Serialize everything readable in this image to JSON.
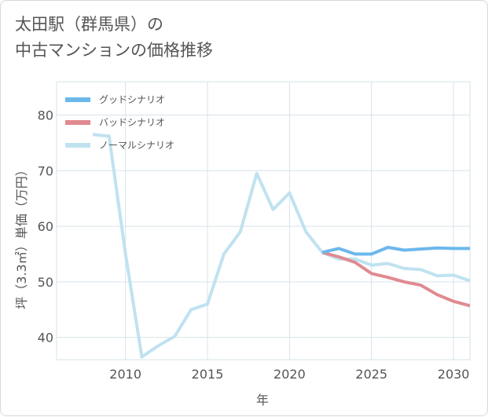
{
  "title_lines": [
    "太田駅（群馬県）の",
    "中古マンションの価格推移"
  ],
  "chart_data": {
    "type": "line",
    "title": "太田駅（群馬県）の中古マンションの価格推移",
    "xlabel": "年",
    "ylabel": "坪（3.3㎡）単価（万円）",
    "xlim": [
      2005.8,
      2031
    ],
    "ylim": [
      36,
      86
    ],
    "xticks": [
      2010,
      2015,
      2020,
      2025,
      2030
    ],
    "yticks": [
      40,
      50,
      60,
      70,
      80
    ],
    "grid": true,
    "legend_position": "top-left",
    "series": [
      {
        "name": "グッドシナリオ",
        "color": "#6cb8ec",
        "x": [
          2022,
          2023,
          2024,
          2025,
          2026,
          2027,
          2028,
          2029,
          2030,
          2031
        ],
        "values": [
          55.3,
          56.0,
          55.0,
          55.0,
          56.2,
          55.7,
          55.9,
          56.1,
          56.0,
          56.0
        ]
      },
      {
        "name": "バッドシナリオ",
        "color": "#e08a90",
        "x": [
          2022,
          2023,
          2024,
          2025,
          2026,
          2027,
          2028,
          2029,
          2030,
          2031
        ],
        "values": [
          55.3,
          54.5,
          53.5,
          51.5,
          50.8,
          50.0,
          49.4,
          47.7,
          46.5,
          45.7
        ]
      },
      {
        "name": "ノーマルシナリオ",
        "color": "#c0e2f0",
        "x": [
          2008,
          2009,
          2010,
          2011,
          2012,
          2013,
          2014,
          2015,
          2016,
          2017,
          2018,
          2019,
          2020,
          2021,
          2022,
          2023,
          2024,
          2025,
          2026,
          2027,
          2028,
          2029,
          2030,
          2031
        ],
        "values": [
          76.5,
          76.2,
          55.0,
          36.5,
          38.5,
          40.2,
          45.0,
          46.0,
          55.0,
          59.0,
          69.5,
          63.0,
          66.0,
          59.0,
          55.3,
          54.1,
          54.1,
          53.0,
          53.3,
          52.4,
          52.2,
          51.1,
          51.2,
          50.2
        ]
      }
    ]
  }
}
